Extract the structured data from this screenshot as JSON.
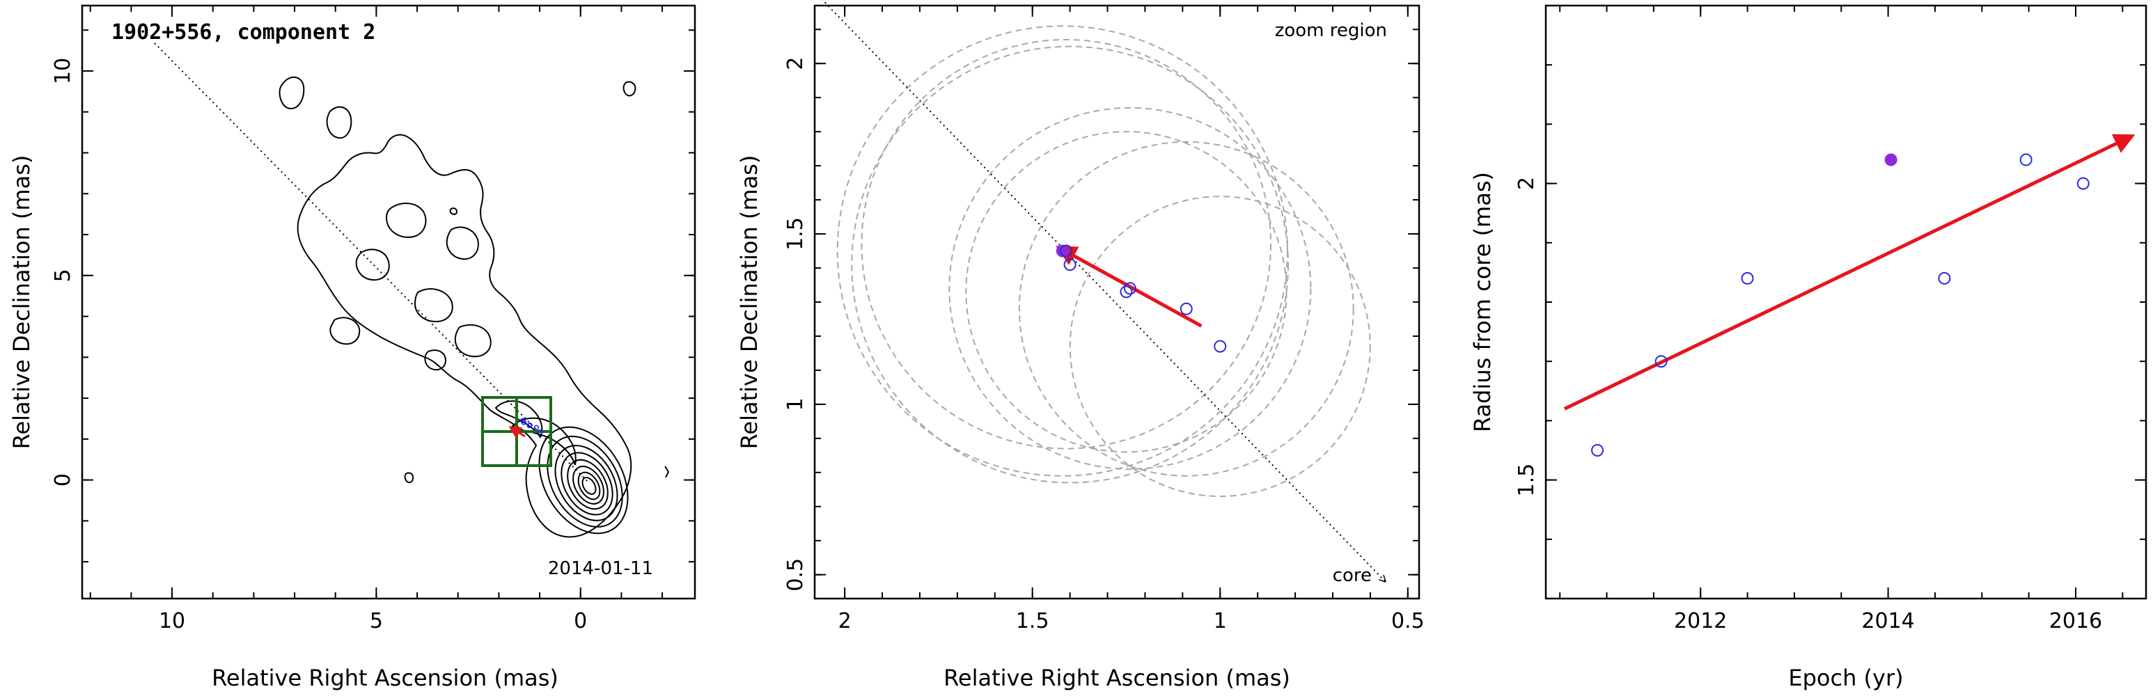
{
  "chart_data": [
    {
      "type": "contour",
      "title": "1902+556, component 2",
      "xlabel": "Relative Right Ascension (mas)",
      "ylabel": "Relative Declination (mas)",
      "xlim": [
        12.2,
        -2.8
      ],
      "ylim": [
        -2.9,
        11.6
      ],
      "xticks": [
        10,
        5,
        0
      ],
      "yticks": [
        0,
        5,
        10
      ],
      "date_label": "2014-01-11",
      "jet_axis": [
        [
          11.5,
          11.5
        ],
        [
          0,
          0
        ]
      ],
      "zoom_box": {
        "x": [
          0.4,
          2.2
        ],
        "y": [
          0.4,
          2.2
        ]
      },
      "component_positions": [
        [
          1.41,
          1.45
        ],
        [
          1.39,
          1.41
        ],
        [
          1.25,
          1.33
        ],
        [
          1.24,
          1.34
        ],
        [
          1.08,
          1.28
        ],
        [
          0.99,
          1.17
        ]
      ],
      "motion_vector": {
        "from": [
          1.05,
          1.23
        ],
        "to": [
          1.42,
          1.46
        ]
      },
      "colors": {
        "contour": "#000000",
        "box": "#1a6b1a",
        "vector": "#e8141c",
        "point": "#1a1aff"
      }
    },
    {
      "type": "scatter",
      "xlabel": "Relative Right Ascension (mas)",
      "ylabel": "Relative Declination (mas)",
      "xlim": [
        2.08,
        0.47
      ],
      "ylim": [
        0.43,
        2.17
      ],
      "xticks": [
        2,
        1.5,
        1,
        0.5
      ],
      "xtick_labels": [
        "2",
        "1.5",
        "1",
        "0.5"
      ],
      "yticks": [
        0.5,
        1,
        1.5,
        2
      ],
      "ytick_labels": [
        "0.5",
        "1",
        "1.5",
        "2"
      ],
      "annotation_top": "zoom region",
      "annotation_core": "core",
      "points": [
        {
          "x": 1.42,
          "y": 1.45,
          "filled": true
        },
        {
          "x": 1.41,
          "y": 1.45,
          "filled": false
        },
        {
          "x": 1.4,
          "y": 1.41,
          "filled": false
        },
        {
          "x": 1.25,
          "y": 1.33,
          "filled": false
        },
        {
          "x": 1.24,
          "y": 1.34,
          "filled": false
        },
        {
          "x": 1.09,
          "y": 1.28,
          "filled": false
        },
        {
          "x": 1.0,
          "y": 1.17,
          "filled": false
        }
      ],
      "circles": [
        {
          "x": 1.42,
          "y": 1.45,
          "r": 0.66
        },
        {
          "x": 1.41,
          "y": 1.47,
          "r": 0.6
        },
        {
          "x": 1.4,
          "y": 1.41,
          "r": 0.64
        },
        {
          "x": 1.25,
          "y": 1.33,
          "r": 0.47
        },
        {
          "x": 1.24,
          "y": 1.34,
          "r": 0.53
        },
        {
          "x": 1.09,
          "y": 1.28,
          "r": 0.49
        },
        {
          "x": 1.0,
          "y": 1.17,
          "r": 0.44
        }
      ],
      "jet_line": {
        "from": [
          2.08,
          2.21
        ],
        "to": [
          0.56,
          0.48
        ]
      },
      "motion_vector": {
        "from": [
          1.05,
          1.23
        ],
        "to": [
          1.43,
          1.46
        ]
      },
      "colors": {
        "circle": "#a8a8a8",
        "vector": "#e8141c",
        "open_point": "#2a2ae0",
        "filled_point": "#8a2be2"
      }
    },
    {
      "type": "scatter",
      "xlabel": "Epoch (yr)",
      "ylabel": "Radius from core (mas)",
      "xlim": [
        2010.35,
        2016.75
      ],
      "ylim": [
        1.3,
        2.3
      ],
      "xticks": [
        2012,
        2014,
        2016
      ],
      "yticks": [
        1.5,
        2
      ],
      "points": [
        {
          "x": 2010.9,
          "y": 1.55,
          "filled": false
        },
        {
          "x": 2011.58,
          "y": 1.7,
          "filled": false
        },
        {
          "x": 2012.5,
          "y": 1.84,
          "filled": false
        },
        {
          "x": 2014.03,
          "y": 2.04,
          "filled": true
        },
        {
          "x": 2014.6,
          "y": 1.84,
          "filled": false
        },
        {
          "x": 2015.47,
          "y": 2.04,
          "filled": false
        },
        {
          "x": 2016.08,
          "y": 2.0,
          "filled": false
        }
      ],
      "fit_line": {
        "from": [
          2010.55,
          1.62
        ],
        "to": [
          2016.6,
          2.08
        ]
      },
      "colors": {
        "vector": "#e8141c",
        "open_point": "#2a2ae0",
        "filled_point": "#8a2be2"
      }
    }
  ]
}
